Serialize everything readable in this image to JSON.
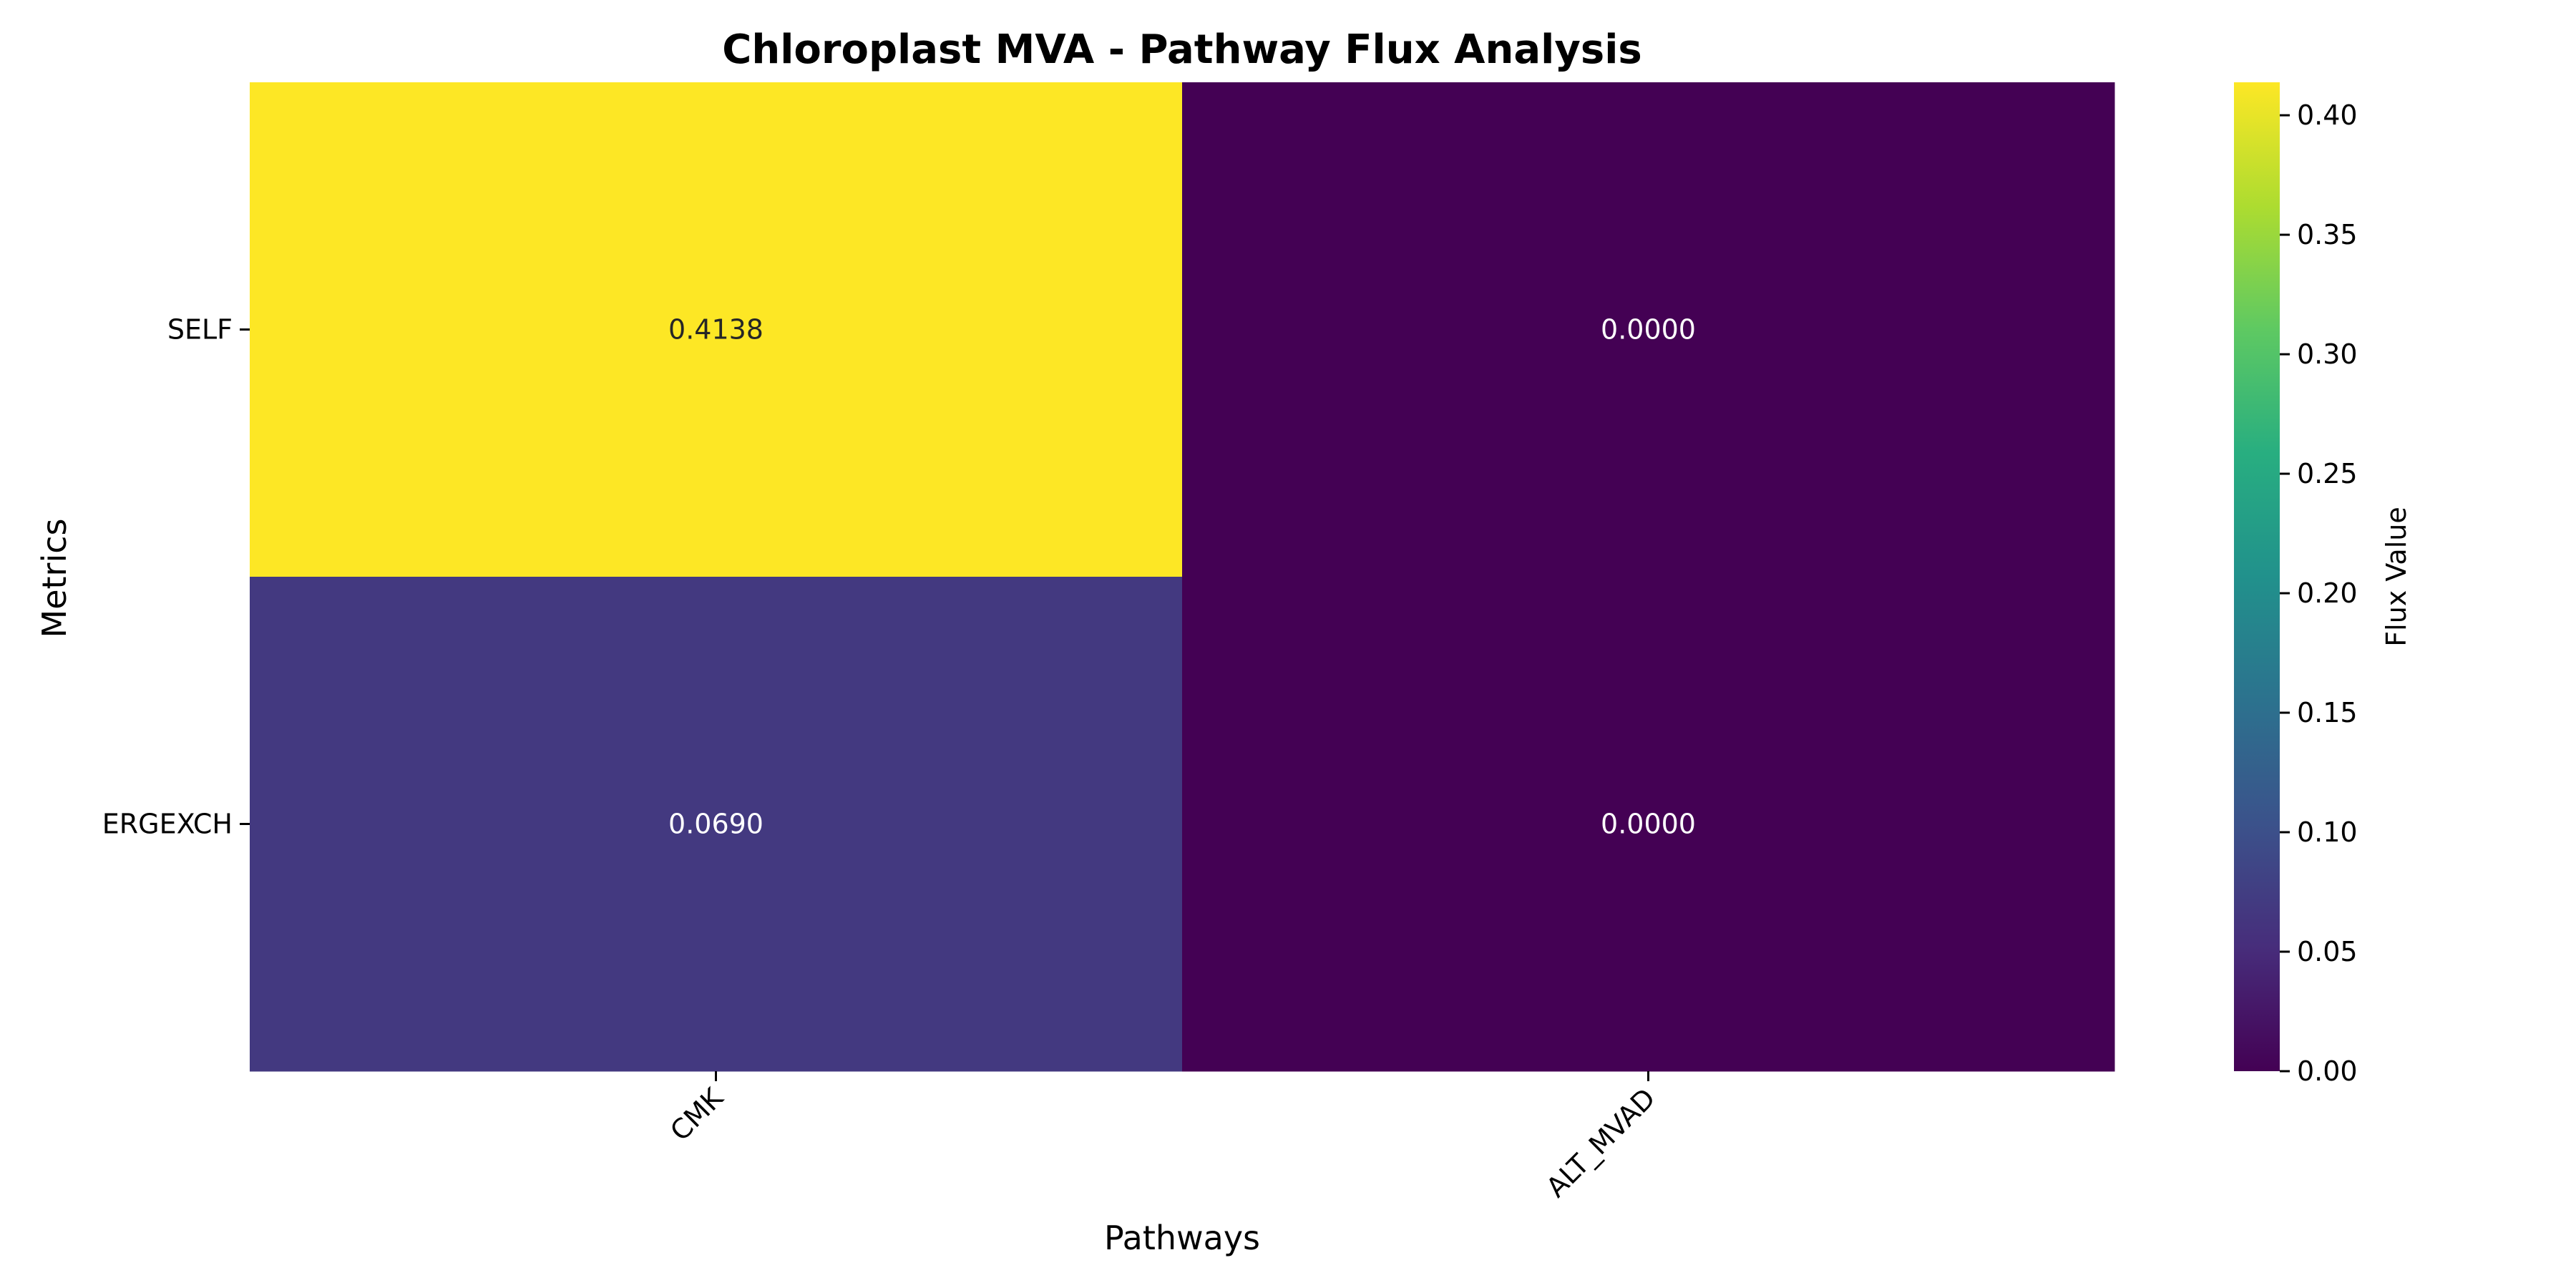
{
  "chart_data": {
    "type": "heatmap",
    "title": "Chloroplast MVA - Pathway Flux Analysis",
    "xlabel": "Pathways",
    "ylabel": "Metrics",
    "x_categories": [
      "CMK",
      "ALT_MVAD"
    ],
    "y_categories": [
      "SELF",
      "ERGEXCH"
    ],
    "values": [
      [
        0.4138,
        0.0
      ],
      [
        0.069,
        0.0
      ]
    ],
    "cell_labels": [
      [
        "0.4138",
        "0.0000"
      ],
      [
        "0.0690",
        "0.0000"
      ]
    ],
    "colormap": "viridis",
    "colorbar": {
      "label": "Flux Value",
      "range": [
        0.0,
        0.4138
      ],
      "ticks": [
        0.0,
        0.05,
        0.1,
        0.15,
        0.2,
        0.25,
        0.3,
        0.35,
        0.4
      ],
      "tick_labels": [
        "0.00",
        "0.05",
        "0.10",
        "0.15",
        "0.20",
        "0.25",
        "0.30",
        "0.35",
        "0.40"
      ]
    },
    "grid": false
  }
}
